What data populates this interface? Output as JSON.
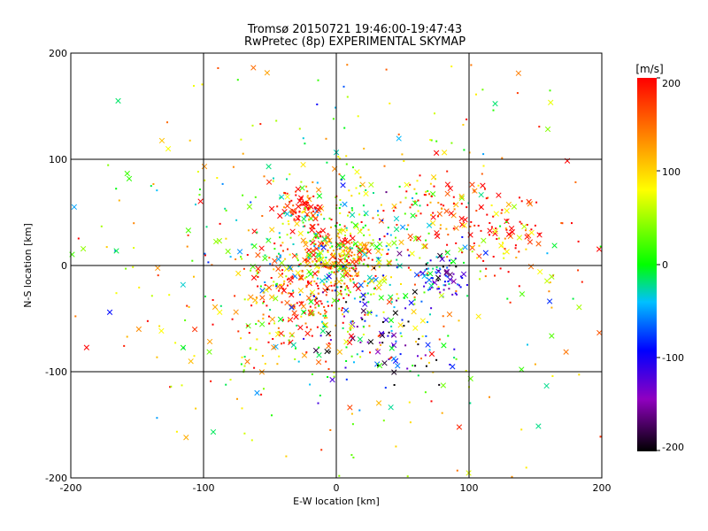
{
  "chart_data": {
    "type": "scatter",
    "title": "Tromsø 20150721 19:46:00-19:47:43",
    "subtitle": "RwPretec (8p) EXPERIMENTAL SKYMAP",
    "xlabel": "E-W location [km]",
    "ylabel": "N-S location [km]",
    "xlim": [
      -200,
      200
    ],
    "ylim": [
      -200,
      200
    ],
    "xticks": [
      "-200",
      "-100",
      "0",
      "100",
      "200"
    ],
    "yticks": [
      "-200",
      "-100",
      "0",
      "100",
      "200"
    ],
    "grid": true,
    "markers": "dots and crosses, colored by velocity",
    "colorbar": {
      "label": "[m/s]",
      "range": [
        -200,
        200
      ],
      "ticks": [
        "200",
        "100",
        "0",
        "-100",
        "-200"
      ],
      "colormap": [
        "#000000",
        "#9000c0",
        "#0000ff",
        "#00c0ff",
        "#00ff00",
        "#ffff00",
        "#ff8000",
        "#ff0000"
      ]
    },
    "clusters": [
      {
        "x": 0,
        "y": 5,
        "spread": 18,
        "velocity": 150,
        "n": 260
      },
      {
        "x": 0,
        "y": 10,
        "spread": 28,
        "velocity": 40,
        "n": 180
      },
      {
        "x": -30,
        "y": -35,
        "spread": 28,
        "velocity": 180,
        "n": 160
      },
      {
        "x": 30,
        "y": -60,
        "spread": 28,
        "velocity": -130,
        "n": 110
      },
      {
        "x": 78,
        "y": -12,
        "spread": 10,
        "velocity": -110,
        "n": 70
      },
      {
        "x": 85,
        "y": 45,
        "spread": 22,
        "velocity": 190,
        "n": 90
      },
      {
        "x": 130,
        "y": 30,
        "spread": 22,
        "velocity": 195,
        "n": 70
      },
      {
        "x": -25,
        "y": 55,
        "spread": 7,
        "velocity": 200,
        "n": 70
      },
      {
        "x": 0,
        "y": 0,
        "spread": 80,
        "velocity": 60,
        "n": 420
      },
      {
        "x": 0,
        "y": 0,
        "spread": 130,
        "velocity": 100,
        "n": 220
      }
    ]
  }
}
